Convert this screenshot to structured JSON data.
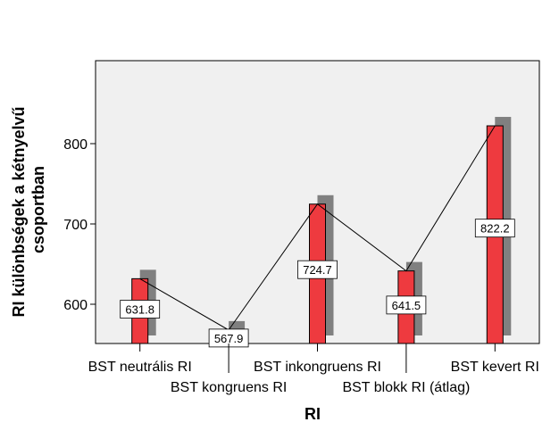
{
  "chart_data": {
    "type": "bar",
    "categories": [
      "BST neutrális RI",
      "BST kongruens RI",
      "BST inkongruens RI",
      "BST blokk RI (átlag)",
      "BST kevert RI"
    ],
    "values": [
      631.8,
      567.9,
      724.7,
      641.5,
      822.2
    ],
    "data_labels": [
      "631.8",
      "567.9",
      "724.7",
      "641.5",
      "822.2"
    ],
    "series": [
      {
        "values": [
          631.8,
          567.9,
          724.7,
          641.5,
          822.2
        ]
      }
    ],
    "ylabel_lines": [
      "RI különbségek a kétnyelvű",
      "csoportban"
    ],
    "xlabel": "RI",
    "ylim": [
      550,
      900
    ],
    "yticks": [
      600,
      700,
      800
    ],
    "grid": false,
    "legend": "none",
    "colors": {
      "bar": "#ee3a3f",
      "shadow": "#808080",
      "plot_background": "#f0f0f0",
      "line": "#000000"
    }
  }
}
